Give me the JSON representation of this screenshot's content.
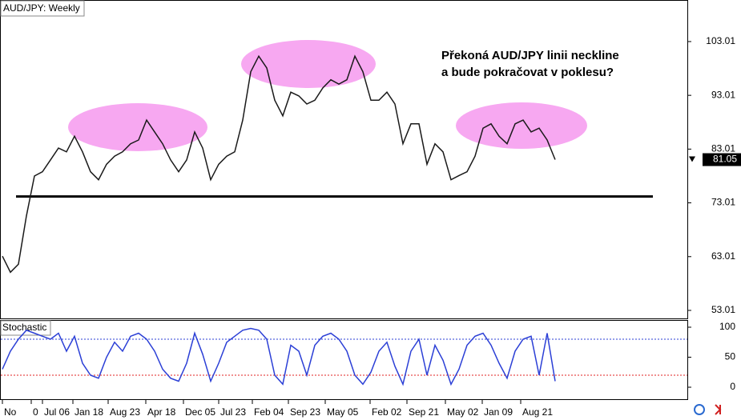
{
  "chart_data": [
    {
      "type": "line",
      "title": "AUD/JPY: Weekly",
      "annotation": [
        "Překoná AUD/JPY linii neckline",
        "a bude pokračovat v poklesu?"
      ],
      "x": [
        0,
        1,
        2,
        3,
        4,
        5,
        6,
        7,
        8,
        9,
        10,
        11,
        12,
        13,
        14,
        15,
        16,
        17,
        18,
        19,
        20,
        21,
        22,
        23,
        24,
        25,
        26,
        27,
        28,
        29,
        30,
        31,
        32,
        33,
        34,
        35,
        36,
        37,
        38,
        39,
        40,
        41,
        42,
        43,
        44,
        45,
        46,
        47,
        48,
        49,
        50,
        51,
        52,
        53,
        54,
        55,
        56,
        57,
        58,
        59,
        60,
        61,
        62,
        63,
        64,
        65,
        66,
        67,
        68,
        69
      ],
      "series": [
        {
          "color": "#1a1a1a",
          "values": [
            63.1,
            60.1,
            61.6,
            70.6,
            78,
            78.8,
            81,
            83.2,
            82.5,
            85.4,
            82.5,
            78.8,
            77.3,
            80.2,
            81.7,
            82.5,
            84,
            84.7,
            88.4,
            86.2,
            84,
            81,
            78.8,
            81,
            86.2,
            83.2,
            77.3,
            80.2,
            81.7,
            82.5,
            88.4,
            97.4,
            100.3,
            98.1,
            92.1,
            89.2,
            93.6,
            92.9,
            91.4,
            92.1,
            94.4,
            95.9,
            95.1,
            95.9,
            100.3,
            97.4,
            92.1,
            92.1,
            93.6,
            91.4,
            84,
            87.7,
            87.7,
            80.2,
            84,
            82.5,
            77.3,
            78.1,
            78.8,
            81.7,
            86.9,
            87.7,
            85.4,
            84,
            87.7,
            88.4,
            86.2,
            86.9,
            84.7,
            81.05
          ]
        }
      ],
      "ylim": [
        51.52,
        110.74
      ],
      "yticks": [
        53.01,
        63.01,
        73.01,
        83.01,
        93.01,
        103.01
      ],
      "current_price": 81.05,
      "neckline": 74.2
    },
    {
      "type": "line",
      "title": "Stochastic",
      "x": [
        0,
        1,
        2,
        3,
        4,
        5,
        6,
        7,
        8,
        9,
        10,
        11,
        12,
        13,
        14,
        15,
        16,
        17,
        18,
        19,
        20,
        21,
        22,
        23,
        24,
        25,
        26,
        27,
        28,
        29,
        30,
        31,
        32,
        33,
        34,
        35,
        36,
        37,
        38,
        39,
        40,
        41,
        42,
        43,
        44,
        45,
        46,
        47,
        48,
        49,
        50,
        51,
        52,
        53,
        54,
        55,
        56,
        57,
        58,
        59,
        60,
        61,
        62,
        63,
        64,
        65,
        66,
        67,
        68,
        69
      ],
      "series": [
        {
          "color": "#2b3fd6",
          "values": [
            30,
            60,
            80,
            95,
            90,
            85,
            80,
            90,
            60,
            85,
            40,
            20,
            15,
            50,
            75,
            60,
            85,
            90,
            80,
            60,
            30,
            15,
            10,
            40,
            90,
            55,
            10,
            40,
            75,
            85,
            95,
            98,
            95,
            80,
            20,
            5,
            70,
            60,
            20,
            70,
            85,
            90,
            80,
            60,
            20,
            5,
            25,
            60,
            75,
            35,
            5,
            60,
            80,
            20,
            70,
            45,
            5,
            30,
            70,
            85,
            90,
            70,
            40,
            15,
            60,
            80,
            85,
            20,
            90,
            10
          ]
        }
      ],
      "ylim": [
        -21.3,
        112
      ],
      "yticks": [
        0,
        50,
        100
      ],
      "levels": [
        {
          "value": 80,
          "color": "#2b3fd6"
        },
        {
          "value": 20,
          "color": "#e02020"
        }
      ],
      "xlim": [
        -0.3,
        85.5
      ],
      "xticks": [
        {
          "value": 0,
          "label": "No"
        },
        {
          "value": 3.6,
          "label": "0"
        },
        {
          "value": 5,
          "label": "Jul 06"
        },
        {
          "value": 8.8,
          "label": "Jan 18"
        },
        {
          "value": 13.2,
          "label": "Aug 23"
        },
        {
          "value": 17.9,
          "label": "Apr 18"
        },
        {
          "value": 22.6,
          "label": "Dec 05"
        },
        {
          "value": 27,
          "label": "Jul 23"
        },
        {
          "value": 31.2,
          "label": "Feb 04"
        },
        {
          "value": 35.7,
          "label": "Sep 23"
        },
        {
          "value": 40.3,
          "label": "May 05"
        },
        {
          "value": 45.9,
          "label": "Feb 02"
        },
        {
          "value": 50.5,
          "label": "Sep 21"
        },
        {
          "value": 55.3,
          "label": "May 02"
        },
        {
          "value": 59.9,
          "label": "Jan 09"
        },
        {
          "value": 64.7,
          "label": "Aug 21"
        }
      ]
    }
  ]
}
